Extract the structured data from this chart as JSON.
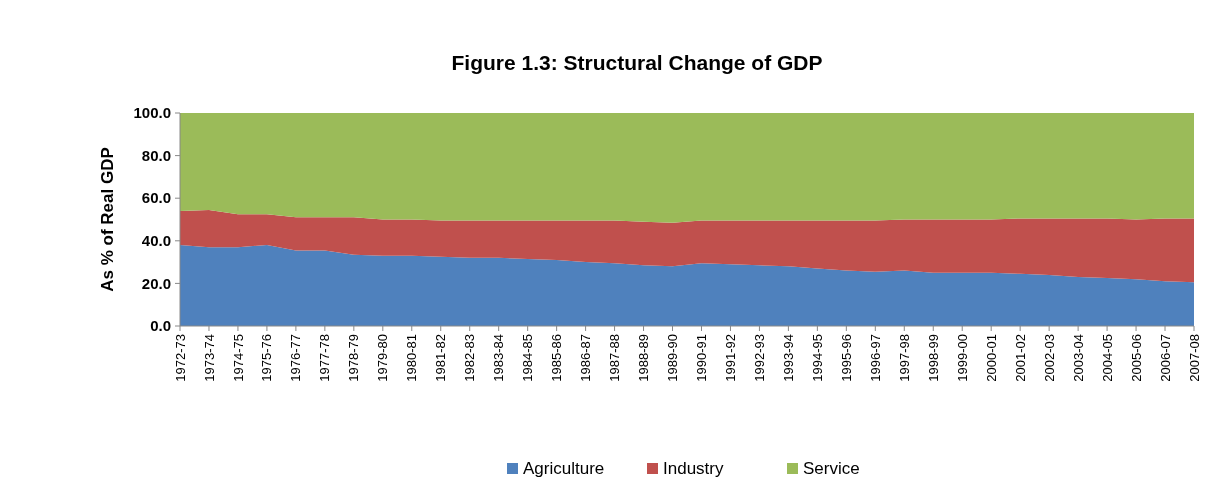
{
  "chart_data": {
    "type": "area",
    "stacked": true,
    "title": "Figure 1.3: Structural Change of GDP",
    "ylabel": "As % of Real GDP",
    "categories": [
      "1972-73",
      "1973-74",
      "1974-75",
      "1975-76",
      "1976-77",
      "1977-78",
      "1978-79",
      "1979-80",
      "1980-81",
      "1981-82",
      "1982-83",
      "1983-84",
      "1984-85",
      "1985-86",
      "1986-87",
      "1987-88",
      "1988-89",
      "1989-90",
      "1990-91",
      "1991-92",
      "1992-93",
      "1993-94",
      "1994-95",
      "1995-96",
      "1996-97",
      "1997-98",
      "1998-99",
      "1999-00",
      "2000-01",
      "2001-02",
      "2002-03",
      "2003-04",
      "2004-05",
      "2005-06",
      "2006-07",
      "2007-08"
    ],
    "series": [
      {
        "name": "Agriculture",
        "color": "#4f81bd",
        "values": [
          38,
          37,
          37,
          38,
          35.5,
          35.5,
          33.5,
          33,
          33,
          32.5,
          32,
          32,
          31.5,
          31,
          30,
          29.5,
          28.5,
          28,
          29.5,
          29,
          28.5,
          28,
          27,
          26,
          25.5,
          26,
          25,
          25,
          25,
          24.5,
          24,
          23,
          22.5,
          22,
          21,
          20.5
        ]
      },
      {
        "name": "Industry",
        "color": "#c0504d",
        "values": [
          16,
          17.5,
          15.5,
          14.5,
          15.5,
          15.5,
          17.5,
          17,
          17,
          17,
          17.5,
          17.5,
          18,
          18.5,
          19.5,
          20,
          20.5,
          20.5,
          20,
          20.5,
          21,
          21.5,
          22.5,
          23.5,
          24,
          24,
          25,
          25,
          25,
          26,
          26.5,
          27.5,
          28,
          28,
          29.5,
          30
        ]
      },
      {
        "name": "Service",
        "color": "#9bbb59",
        "values": [
          46,
          45.5,
          47.5,
          47.5,
          49,
          49,
          49,
          50,
          50,
          50.5,
          50.5,
          50.5,
          50.5,
          50.5,
          50.5,
          50.5,
          51,
          51.5,
          50.5,
          50.5,
          50.5,
          50.5,
          50.5,
          50.5,
          50.5,
          50,
          50,
          50,
          50,
          49.5,
          49.5,
          49.5,
          49.5,
          50,
          49.5,
          49.5
        ]
      }
    ],
    "ylim": [
      0,
      100
    ],
    "yticks": [
      {
        "value": 0,
        "label": "0.0"
      },
      {
        "value": 20,
        "label": "20.0"
      },
      {
        "value": 40,
        "label": "40.0"
      },
      {
        "value": 60,
        "label": "60.0"
      },
      {
        "value": 80,
        "label": "80.0"
      },
      {
        "value": 100,
        "label": "100.0"
      }
    ],
    "grid": false,
    "legend": "bottom"
  }
}
